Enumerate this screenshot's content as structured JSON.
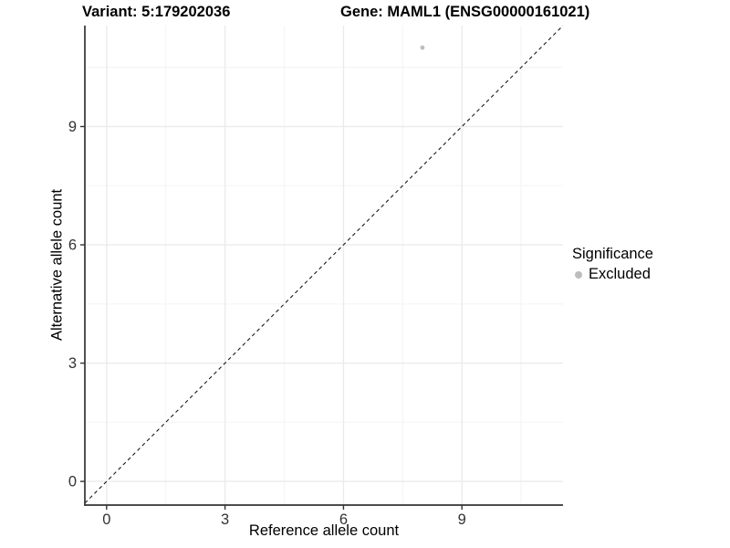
{
  "chart_data": {
    "type": "scatter",
    "title_left": "Variant: 5:179202036",
    "title_right": "Gene: MAML1 (ENSG00000161021)",
    "xlabel": "Reference allele count",
    "ylabel": "Alternative allele count",
    "xlim": [
      -0.55,
      11.56
    ],
    "ylim": [
      -0.6,
      11.56
    ],
    "x_ticks": [
      0,
      3,
      6,
      9
    ],
    "y_ticks": [
      0,
      3,
      6,
      9
    ],
    "x_minor_ticks": [
      1.5,
      4.5,
      7.5,
      10.5
    ],
    "y_minor_ticks": [
      1.5,
      4.5,
      7.5,
      10.5
    ],
    "grid": "major+minor",
    "points": [
      {
        "x": 8,
        "y": 11,
        "series": "Excluded"
      }
    ],
    "identity_line": {
      "style": "dashed",
      "equation": "y = x"
    },
    "legend": {
      "position": "right",
      "title": "Significance",
      "items": [
        {
          "label": "Excluded",
          "color": "#bdbdbd"
        }
      ]
    },
    "colors": {
      "point": "#bdbdbd",
      "axis": "#333333",
      "tick_label": "#333333",
      "grid_major": "#ebebeb",
      "grid_minor": "#f5f5f5",
      "identity_line": "#1a1a1a",
      "background": "#ffffff"
    }
  }
}
